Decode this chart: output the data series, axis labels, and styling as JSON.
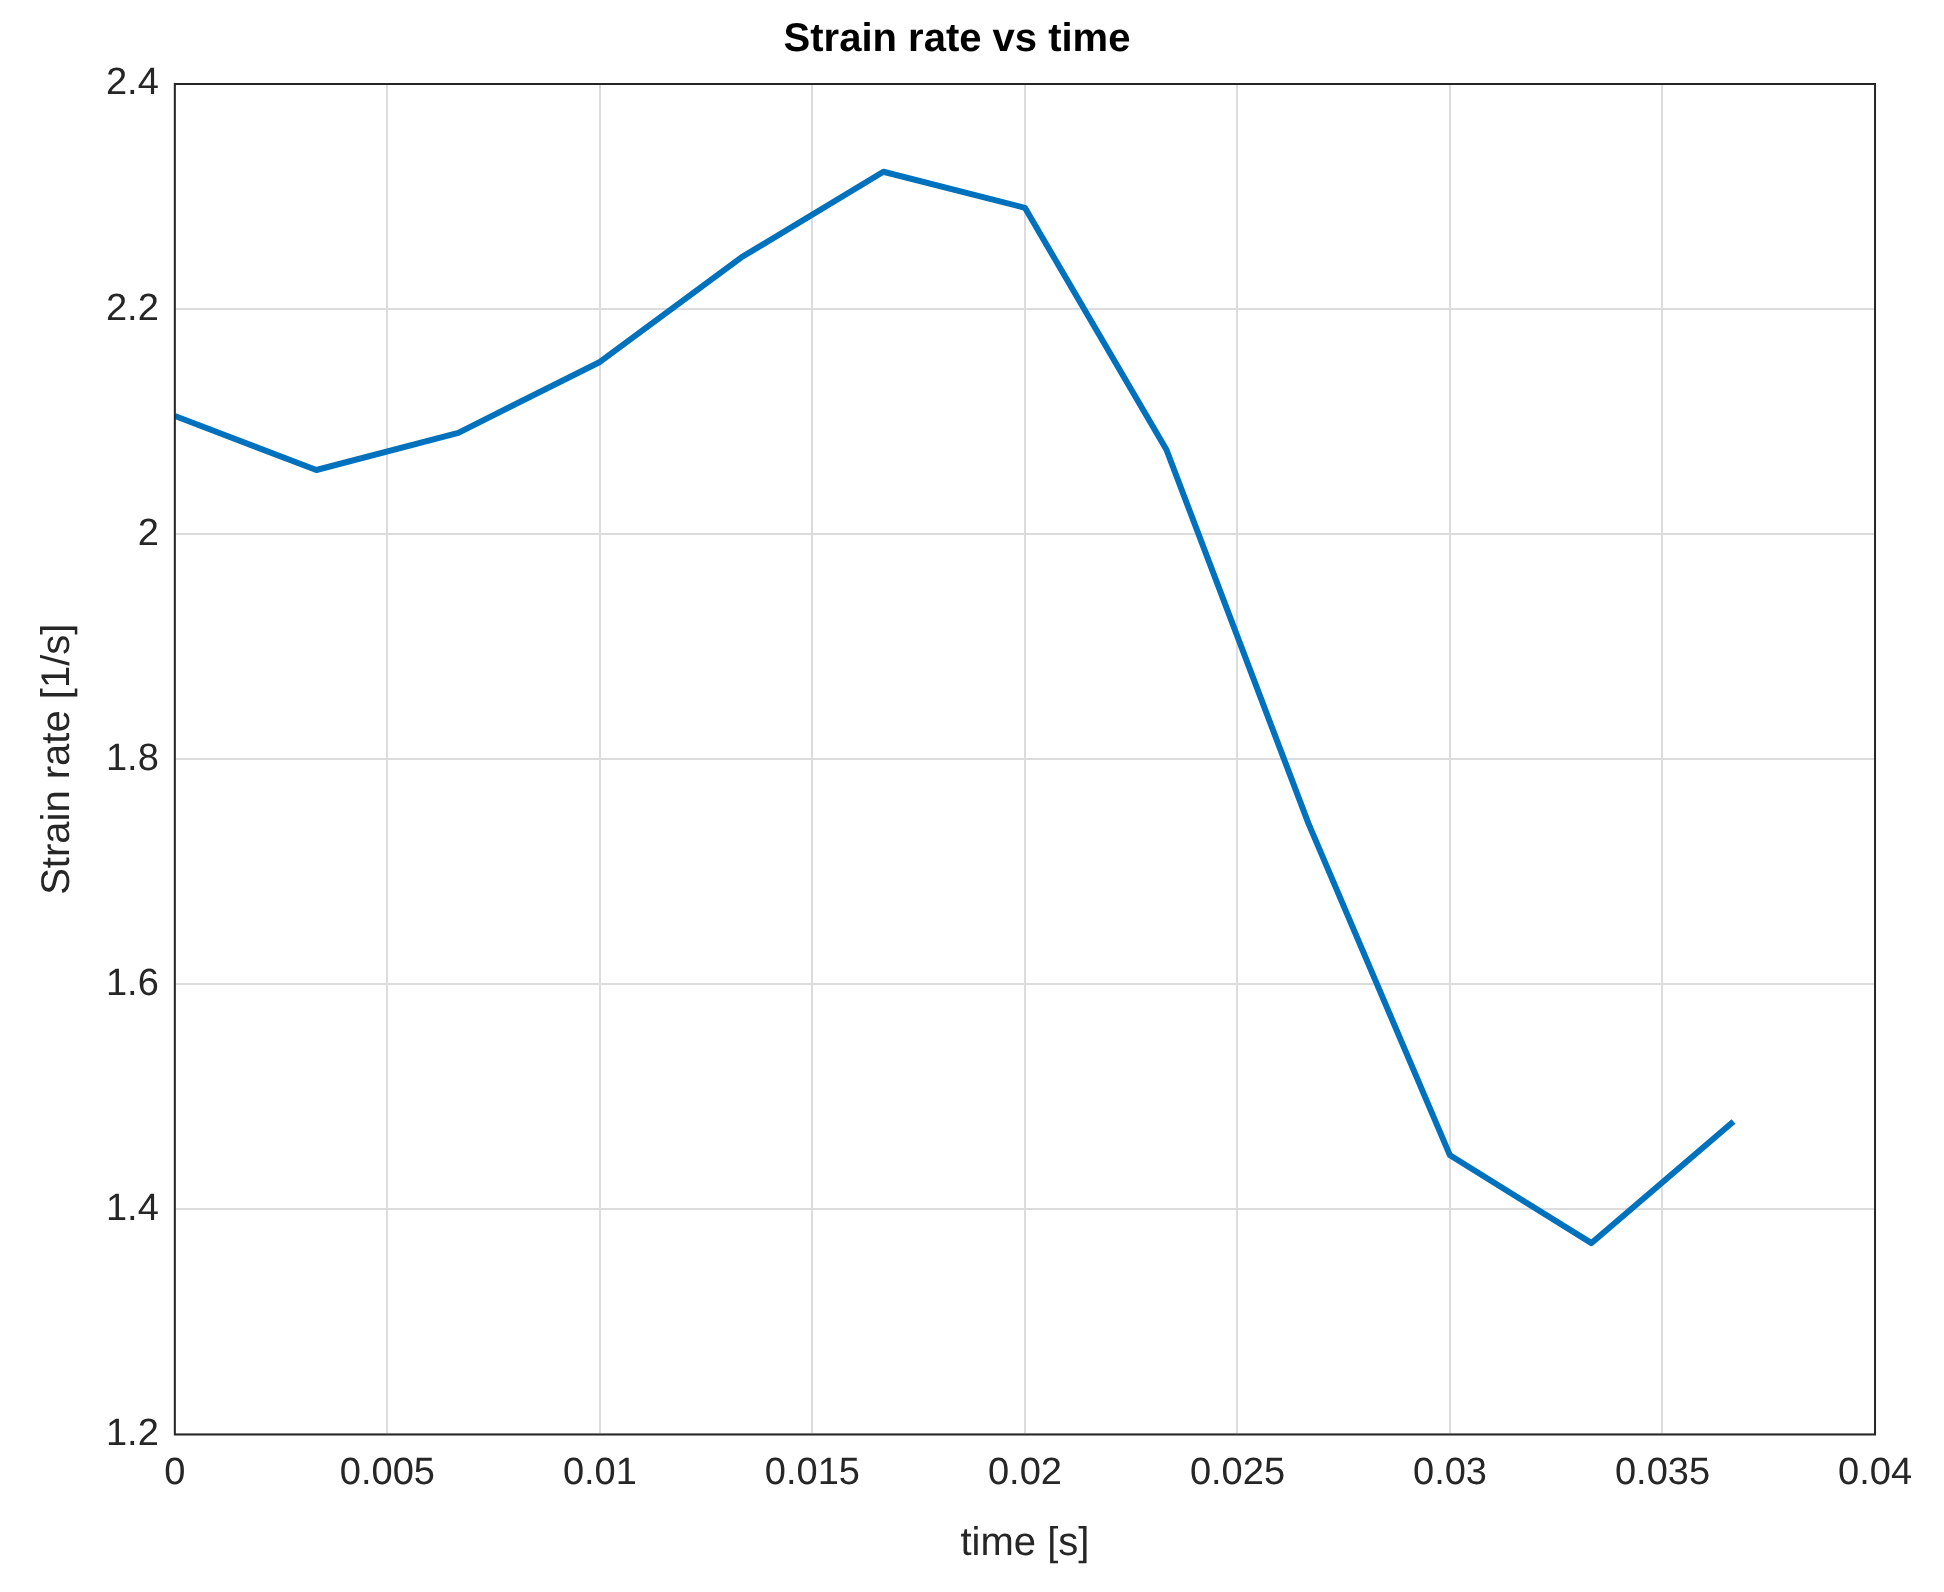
{
  "chart_data": {
    "type": "line",
    "title": "Strain rate vs time",
    "xlabel": "time [s]",
    "ylabel": "Strain rate [1/s]",
    "x": [
      0,
      0.00333,
      0.00667,
      0.01,
      0.01333,
      0.01667,
      0.02,
      0.02333,
      0.02667,
      0.03,
      0.03333,
      0.03667
    ],
    "series": [
      {
        "color": "#0072bd",
        "values": [
          2.105,
          2.057,
          2.09,
          2.153,
          2.246,
          2.322,
          2.29,
          2.075,
          1.743,
          1.448,
          1.37,
          1.478
        ]
      }
    ],
    "xlim": [
      0,
      0.04
    ],
    "xticks": [
      0,
      0.005,
      0.01,
      0.015,
      0.02,
      0.025,
      0.03,
      0.035,
      0.04
    ],
    "ylim": [
      1.2,
      2.4
    ],
    "yticks": [
      1.2,
      1.4,
      1.6,
      1.8,
      2,
      2.2,
      2.4
    ],
    "grid": true,
    "legend": false
  }
}
